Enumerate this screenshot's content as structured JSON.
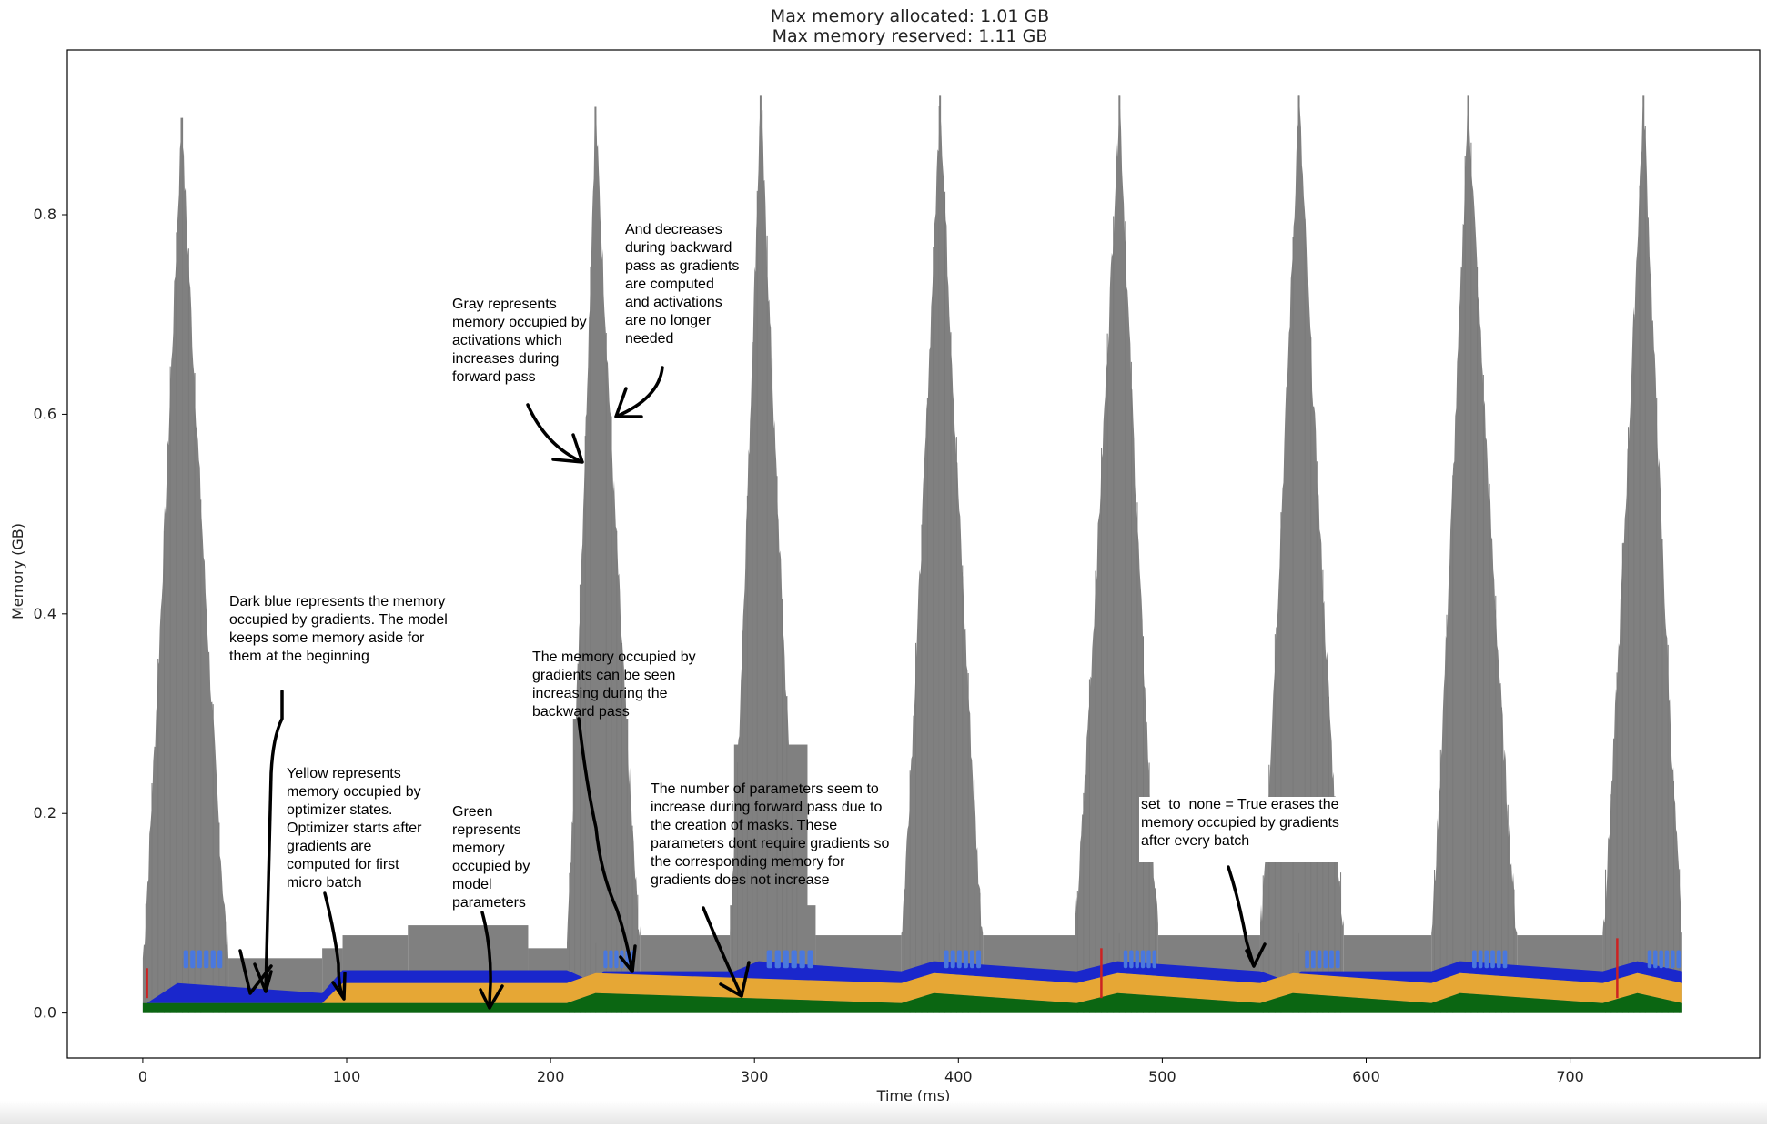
{
  "chart_data": {
    "type": "area",
    "title": [
      "Max memory allocated: 1.01 GB",
      "Max memory reserved: 1.11 GB"
    ],
    "xlabel": "Time (ms)",
    "ylabel": "Memory (GB)",
    "xlim": [
      -37,
      793
    ],
    "ylim": [
      -0.045,
      0.965
    ],
    "xticks": [
      0,
      100,
      200,
      300,
      400,
      500,
      600,
      700
    ],
    "yticks": [
      0.0,
      0.2,
      0.4,
      0.6,
      0.8
    ],
    "grid": false,
    "colors": {
      "activations": "#808080",
      "gradients": "#1a27cc",
      "optimizer": "#e6a735",
      "parameters": "#0b6612",
      "gradients_light": "#4a78de",
      "red_mark": "#cc2222",
      "annotation_stroke": "#000000"
    },
    "series": [
      {
        "name": "parameters",
        "x": [
          0,
          208,
          208,
          222,
          222,
          372,
          372,
          388,
          388,
          458,
          458,
          478,
          478,
          548,
          548,
          564,
          564,
          632,
          632,
          646,
          646,
          716,
          716,
          733,
          733,
          755
        ],
        "values": [
          0.01,
          0.01,
          0.02,
          0.02,
          0.01,
          0.01,
          0.02,
          0.02,
          0.01,
          0.01,
          0.02,
          0.02,
          0.01,
          0.01,
          0.02,
          0.02,
          0.01,
          0.01,
          0.02,
          0.02,
          0.01,
          0.01,
          0.02,
          0.02,
          0.01,
          0.01
        ]
      },
      {
        "name": "optimizer states",
        "x": [
          0,
          88,
          98,
          208,
          208,
          222,
          222,
          372,
          372,
          388,
          388,
          458,
          458,
          478,
          478,
          548,
          548,
          564,
          564,
          632,
          632,
          646,
          646,
          716,
          716,
          733,
          733,
          755
        ],
        "values": [
          0.01,
          0.01,
          0.03,
          0.03,
          0.04,
          0.04,
          0.03,
          0.03,
          0.04,
          0.04,
          0.03,
          0.03,
          0.04,
          0.04,
          0.03,
          0.03,
          0.04,
          0.04,
          0.03,
          0.03,
          0.04,
          0.04,
          0.03,
          0.03,
          0.04,
          0.04,
          0.03,
          0.03
        ]
      },
      {
        "name": "gradients",
        "x": [
          0,
          2,
          2,
          17,
          17,
          88,
          98,
          208,
          208,
          222,
          226,
          290,
          290,
          302,
          302,
          372,
          372,
          388,
          388,
          458,
          458,
          478,
          478,
          548,
          548,
          564,
          568,
          632,
          632,
          646,
          646,
          716,
          716,
          733,
          733,
          755
        ],
        "values": [
          0.01,
          0.01,
          0.03,
          0.03,
          0.02,
          0.02,
          0.043,
          0.043,
          0.03,
          0.03,
          0.042,
          0.042,
          0.052,
          0.052,
          0.042,
          0.042,
          0.052,
          0.052,
          0.042,
          0.042,
          0.052,
          0.052,
          0.042,
          0.042,
          0.03,
          0.03,
          0.042,
          0.042,
          0.052,
          0.052,
          0.042,
          0.042,
          0.052,
          0.052,
          0.042,
          0.042
        ]
      },
      {
        "name": "activations",
        "peaks": [
          {
            "start": 0,
            "peak_x": 19,
            "end": 42,
            "base": 0.055,
            "peak": 0.897
          },
          {
            "start": 208,
            "peak_x": 222,
            "end": 244,
            "base": 0.07,
            "peak": 0.908
          },
          {
            "start": 288,
            "peak_x": 303,
            "end": 322,
            "base": 0.08,
            "peak": 0.92
          },
          {
            "start": 372,
            "peak_x": 391,
            "end": 412,
            "base": 0.08,
            "peak": 0.92
          },
          {
            "start": 457,
            "peak_x": 479,
            "end": 498,
            "base": 0.08,
            "peak": 0.92
          },
          {
            "start": 548,
            "peak_x": 567,
            "end": 589,
            "base": 0.08,
            "peak": 0.92
          },
          {
            "start": 632,
            "peak_x": 650,
            "end": 674,
            "base": 0.08,
            "peak": 0.92
          },
          {
            "start": 716,
            "peak_x": 736,
            "end": 755,
            "base": 0.08,
            "peak": 0.92
          }
        ],
        "plateaus": [
          {
            "x0": 42,
            "x1": 88,
            "y": 0.055
          },
          {
            "x0": 88,
            "x1": 98,
            "y": 0.065
          },
          {
            "x0": 98,
            "x1": 130,
            "y": 0.078
          },
          {
            "x0": 130,
            "x1": 189,
            "y": 0.088
          },
          {
            "x0": 189,
            "x1": 208,
            "y": 0.065
          },
          {
            "x0": 244,
            "x1": 288,
            "y": 0.078
          },
          {
            "x0": 288,
            "x1": 330,
            "y": 0.108
          },
          {
            "x0": 330,
            "x1": 372,
            "y": 0.078
          },
          {
            "x0": 412,
            "x1": 457,
            "y": 0.078
          },
          {
            "x0": 498,
            "x1": 548,
            "y": 0.078
          },
          {
            "x0": 589,
            "x1": 632,
            "y": 0.078
          },
          {
            "x0": 674,
            "x1": 716,
            "y": 0.078
          }
        ],
        "plateau_boxes": [
          {
            "x0": 211,
            "x1": 238,
            "y0": 0.078,
            "y1": 0.295
          },
          {
            "x0": 290,
            "x1": 326,
            "y0": 0.078,
            "y1": 0.269
          }
        ]
      }
    ],
    "annotations": [
      {
        "text": [
          "Dark blue represents the memory",
          "occupied by gradients. The model",
          "keeps some memory aside for",
          "them at the beginning"
        ]
      },
      {
        "text": [
          "Yellow represents",
          "memory occupied by",
          "optimizer states.",
          "Optimizer starts after",
          "gradients are",
          "computed for first",
          "micro batch"
        ]
      },
      {
        "text": [
          "Green",
          "represents",
          "memory",
          "occupied by",
          "model",
          "parameters"
        ]
      },
      {
        "text": [
          "Gray represents",
          "memory occupied by",
          "activations which",
          "increases during",
          "forward pass"
        ]
      },
      {
        "text": [
          "And decreases",
          "during backward",
          "pass as gradients",
          "are computed",
          "and activations",
          "are no longer",
          "needed"
        ]
      },
      {
        "text": [
          "The memory occupied by",
          "gradients can be seen",
          "increasing during the",
          "backward pass"
        ]
      },
      {
        "text": [
          "The number of parameters seem to",
          "increase during forward pass due to",
          "the creation of masks. These",
          "parameters dont require gradients so",
          "the corresponding memory for",
          "gradients does not increase"
        ]
      },
      {
        "text": [
          "set_to_none = True erases the",
          "memory occupied by gradients",
          "after every batch"
        ]
      }
    ]
  }
}
